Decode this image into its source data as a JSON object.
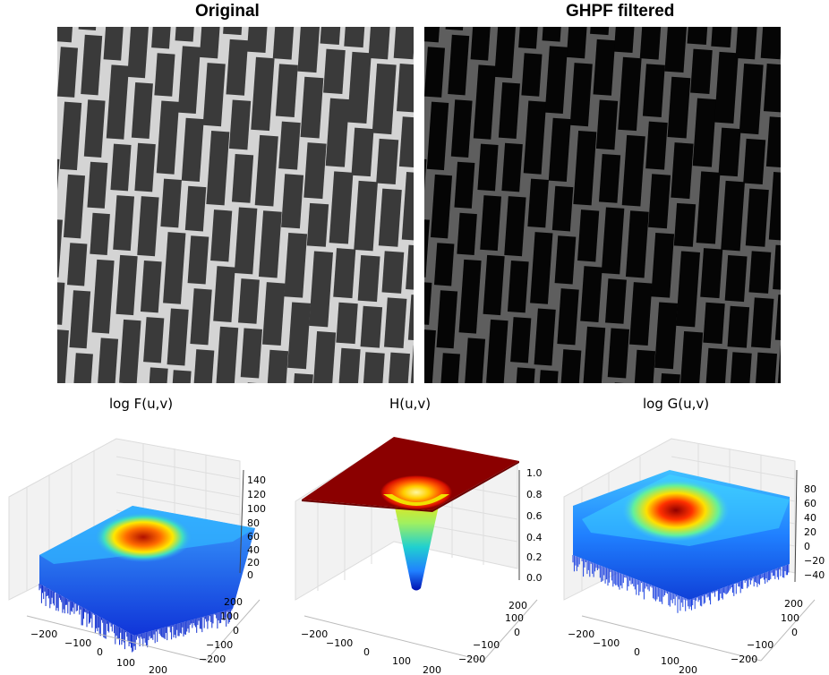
{
  "images": {
    "original_title": "Original",
    "filtered_title": "GHPF filtered"
  },
  "colors": {
    "colormap": "jet",
    "mortar_original": "#d9d9d9",
    "brick_original": "#3a3a3a",
    "mortar_filtered": "#6a6a6a",
    "brick_filtered": "#050505"
  },
  "plots": [
    {
      "title": "log F(u,v)",
      "z_ticks": [
        "140",
        "120",
        "100",
        "80",
        "60",
        "40",
        "20",
        "0"
      ],
      "x_ticks": [
        "−200",
        "−100",
        "0",
        "100",
        "200"
      ],
      "y_ticks": [
        "200",
        "100",
        "0",
        "−100",
        "−200"
      ]
    },
    {
      "title": "H(u,v)",
      "z_ticks": [
        "1.0",
        "0.8",
        "0.6",
        "0.4",
        "0.2",
        "0.0"
      ],
      "x_ticks": [
        "−200",
        "−100",
        "0",
        "100",
        "200"
      ],
      "y_ticks": [
        "200",
        "100",
        "0",
        "−100",
        "−200"
      ]
    },
    {
      "title": "log G(u,v)",
      "z_ticks": [
        "80",
        "60",
        "40",
        "20",
        "0",
        "−20",
        "−40"
      ],
      "x_ticks": [
        "−200",
        "−100",
        "0",
        "100",
        "200"
      ],
      "y_ticks": [
        "200",
        "100",
        "0",
        "−100",
        "−200"
      ]
    }
  ]
}
